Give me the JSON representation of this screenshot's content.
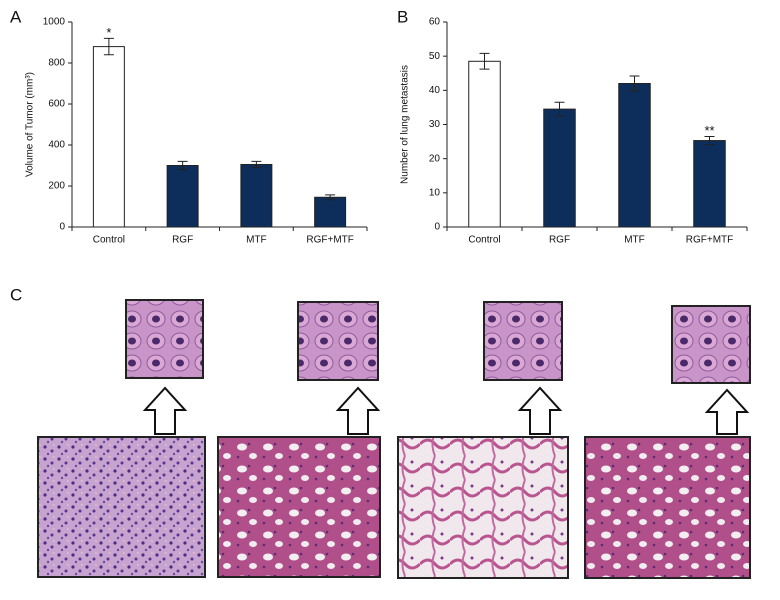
{
  "chart_data": [
    {
      "type": "bar",
      "panel_label": "A",
      "ylabel": "Volume of Tumor (mm³)",
      "categories": [
        "Control",
        "RGF",
        "MTF",
        "RGF+MTF"
      ],
      "values": [
        880,
        300,
        305,
        145
      ],
      "errors": [
        40,
        20,
        15,
        12
      ],
      "colors": [
        "#ffffff",
        "#0d2d5a",
        "#0d2d5a",
        "#0d2d5a"
      ],
      "ylim": [
        0,
        1000
      ],
      "yticks": [
        0,
        200,
        400,
        600,
        800,
        1000
      ],
      "annotations": [
        {
          "category": "Control",
          "text": "*"
        }
      ]
    },
    {
      "type": "bar",
      "panel_label": "B",
      "ylabel": "Number of lung metastasis",
      "categories": [
        "Control",
        "RGF",
        "MTF",
        "RGF+MTF"
      ],
      "values": [
        48.5,
        34.5,
        42,
        25.3
      ],
      "errors": [
        2.3,
        2,
        2.2,
        1.2
      ],
      "colors": [
        "#ffffff",
        "#0d2d5a",
        "#0d2d5a",
        "#0d2d5a"
      ],
      "ylim": [
        0,
        60
      ],
      "yticks": [
        0,
        10,
        20,
        30,
        40,
        50,
        60
      ],
      "annotations": [
        {
          "category": "RGF+MTF",
          "text": "**"
        }
      ]
    }
  ],
  "panel_c": {
    "label": "C"
  }
}
